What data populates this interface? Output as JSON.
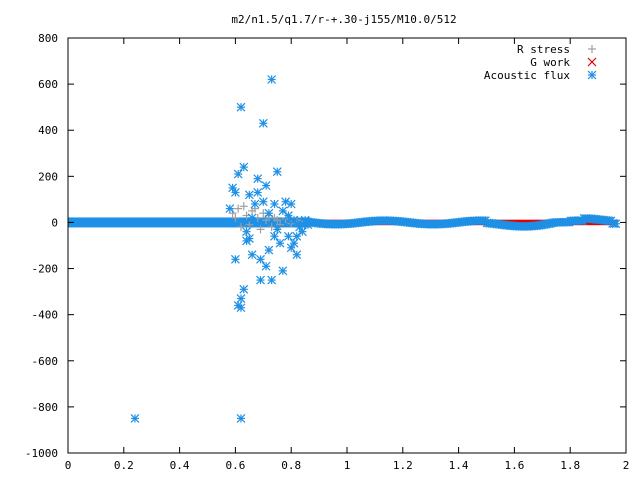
{
  "chart_data": {
    "type": "scatter",
    "title": "m2/n1.5/q1.7/r-+.30-j155/M10.0/512",
    "xlabel": "",
    "ylabel": "",
    "xlim": [
      0,
      2
    ],
    "ylim": [
      -1000,
      800
    ],
    "x_ticks": [
      "0",
      "0.2",
      "0.4",
      "0.6",
      "0.8",
      "1",
      "1.2",
      "1.4",
      "1.6",
      "1.8",
      "2"
    ],
    "y_ticks": [
      "800",
      "600",
      "400",
      "200",
      "0",
      "-200",
      "-400",
      "-600",
      "-800",
      "-1000"
    ],
    "grid": false,
    "legend_position": "top-right",
    "series": [
      {
        "name": "R stress",
        "color": "#a0a0a0",
        "marker": "plus",
        "points": [
          [
            0.59,
            40
          ],
          [
            0.6,
            20
          ],
          [
            0.61,
            60
          ],
          [
            0.62,
            -20
          ],
          [
            0.63,
            70
          ],
          [
            0.64,
            30
          ],
          [
            0.65,
            -10
          ],
          [
            0.66,
            50
          ],
          [
            0.67,
            60
          ],
          [
            0.68,
            20
          ],
          [
            0.69,
            -30
          ],
          [
            0.7,
            40
          ],
          [
            0.71,
            10
          ],
          [
            0.72,
            30
          ],
          [
            0.73,
            -20
          ],
          [
            0.74,
            20
          ],
          [
            0.75,
            10
          ],
          [
            0.76,
            -10
          ],
          [
            0.78,
            15
          ],
          [
            0.8,
            -5
          ],
          [
            0.82,
            10
          ],
          [
            0.85,
            5
          ]
        ]
      },
      {
        "name": "G work",
        "color": "#e00000",
        "marker": "cross",
        "band": {
          "x_start": 0.85,
          "x_end": 1.97,
          "y_half_width": 12
        }
      },
      {
        "name": "Acoustic flux",
        "color": "#1e90e6",
        "marker": "star",
        "points": [
          [
            0.58,
            60
          ],
          [
            0.59,
            150
          ],
          [
            0.6,
            130
          ],
          [
            0.6,
            -160
          ],
          [
            0.61,
            -360
          ],
          [
            0.62,
            -370
          ],
          [
            0.61,
            210
          ],
          [
            0.62,
            500
          ],
          [
            0.63,
            240
          ],
          [
            0.62,
            -330
          ],
          [
            0.63,
            -290
          ],
          [
            0.64,
            -80
          ],
          [
            0.64,
            -40
          ],
          [
            0.65,
            -70
          ],
          [
            0.65,
            120
          ],
          [
            0.66,
            20
          ],
          [
            0.66,
            -140
          ],
          [
            0.67,
            80
          ],
          [
            0.68,
            190
          ],
          [
            0.68,
            130
          ],
          [
            0.69,
            -250
          ],
          [
            0.69,
            -160
          ],
          [
            0.7,
            430
          ],
          [
            0.7,
            90
          ],
          [
            0.71,
            -190
          ],
          [
            0.71,
            160
          ],
          [
            0.72,
            -120
          ],
          [
            0.72,
            40
          ],
          [
            0.73,
            620
          ],
          [
            0.73,
            -250
          ],
          [
            0.74,
            -60
          ],
          [
            0.74,
            80
          ],
          [
            0.75,
            220
          ],
          [
            0.75,
            -30
          ],
          [
            0.76,
            -90
          ],
          [
            0.77,
            -210
          ],
          [
            0.77,
            50
          ],
          [
            0.78,
            90
          ],
          [
            0.79,
            -60
          ],
          [
            0.79,
            30
          ],
          [
            0.8,
            -110
          ],
          [
            0.8,
            80
          ],
          [
            0.81,
            -90
          ],
          [
            0.81,
            10
          ],
          [
            0.82,
            -140
          ],
          [
            0.82,
            -60
          ],
          [
            0.83,
            -20
          ],
          [
            0.84,
            -40
          ],
          [
            0.85,
            10
          ],
          [
            0.86,
            -10
          ],
          [
            0.24,
            -850
          ],
          [
            0.62,
            -850
          ]
        ]
      }
    ]
  }
}
